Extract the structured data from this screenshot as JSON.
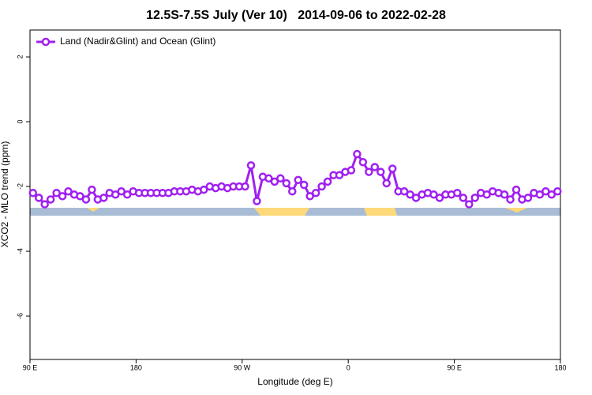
{
  "chart_data": {
    "type": "line",
    "title": "12.5S-7.5S July (Ver 10)   2014-09-06 to 2022-02-28",
    "xlabel": "Longitude (deg E)",
    "ylabel": "XCO2 - MLO trend (ppm)",
    "x": [
      92.5,
      97.5,
      102.5,
      107.5,
      112.5,
      117.5,
      122.5,
      127.5,
      132.5,
      137.5,
      142.5,
      147.5,
      152.5,
      157.5,
      162.5,
      167.5,
      172.5,
      177.5,
      182.5,
      187.5,
      192.5,
      197.5,
      202.5,
      207.5,
      212.5,
      217.5,
      222.5,
      227.5,
      232.5,
      237.5,
      242.5,
      247.5,
      252.5,
      257.5,
      262.5,
      267.5,
      272.5,
      277.5,
      282.5,
      287.5,
      292.5,
      297.5,
      302.5,
      307.5,
      312.5,
      317.5,
      322.5,
      327.5,
      332.5,
      337.5,
      342.5,
      347.5,
      352.5,
      357.5,
      362.5,
      367.5,
      372.5,
      377.5,
      382.5,
      387.5,
      392.5,
      397.5,
      402.5,
      407.5,
      412.5,
      417.5,
      422.5,
      427.5,
      432.5,
      437.5,
      442.5,
      447.5,
      452.5,
      457.5,
      462.5,
      467.5,
      472.5,
      477.5,
      482.5,
      487.5,
      492.5,
      497.5,
      502.5,
      507.5,
      512.5,
      517.5,
      522.5,
      527.5,
      532.5,
      537.5
    ],
    "series": [
      {
        "name": "Land (Nadir&Glint) and Ocean (Glint)",
        "color": "#a020f0",
        "values": [
          -2.2,
          -2.35,
          -2.55,
          -2.4,
          -2.2,
          -2.3,
          -2.15,
          -2.25,
          -2.3,
          -2.4,
          -2.1,
          -2.4,
          -2.35,
          -2.2,
          -2.25,
          -2.15,
          -2.25,
          -2.15,
          -2.2,
          -2.2,
          -2.2,
          -2.2,
          -2.2,
          -2.2,
          -2.15,
          -2.15,
          -2.15,
          -2.1,
          -2.15,
          -2.1,
          -2.0,
          -2.05,
          -2.0,
          -2.05,
          -2.0,
          -2.0,
          -2.0,
          -1.35,
          -2.45,
          -1.7,
          -1.75,
          -1.85,
          -1.75,
          -1.9,
          -2.15,
          -1.8,
          -1.95,
          -2.3,
          -2.2,
          -2.0,
          -1.85,
          -1.65,
          -1.65,
          -1.55,
          -1.5,
          -1.0,
          -1.25,
          -1.55,
          -1.4,
          -1.55,
          -1.9,
          -1.45,
          -2.15,
          -2.15,
          -2.25,
          -2.35,
          -2.25,
          -2.2,
          -2.25,
          -2.35,
          -2.25,
          -2.25,
          -2.2,
          -2.35,
          -2.55,
          -2.35,
          -2.2,
          -2.25,
          -2.15,
          -2.2,
          -2.25,
          -2.4,
          -2.1,
          -2.4,
          -2.35,
          -2.2,
          -2.25,
          -2.15,
          -2.25,
          -2.15
        ]
      }
    ],
    "xlim": [
      90,
      540
    ],
    "xticks": [
      {
        "value": 90,
        "label": "90 E"
      },
      {
        "value": 180,
        "label": "180"
      },
      {
        "value": 270,
        "label": "90 W"
      },
      {
        "value": 360,
        "label": "0"
      },
      {
        "value": 450,
        "label": "90 E"
      },
      {
        "value": 540,
        "label": "180"
      }
    ],
    "ylim": [
      -7.34,
      2.83
    ],
    "yticks": [
      -6,
      -4,
      -2,
      0,
      2
    ],
    "legend": "top-left"
  }
}
